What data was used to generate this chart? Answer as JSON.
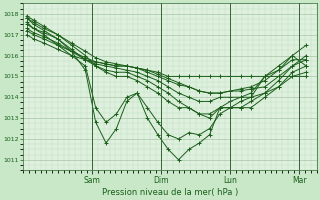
{
  "xlabel": "Pression niveau de la mer( hPa )",
  "ylim": [
    1010.5,
    1018.5
  ],
  "yticks": [
    1011,
    1012,
    1013,
    1014,
    1015,
    1016,
    1017,
    1018
  ],
  "xtick_labels": [
    "Sam",
    "Dim",
    "Lun",
    "Mar"
  ],
  "xtick_positions": [
    1.0,
    2.0,
    3.0,
    4.0
  ],
  "xlim": [
    0.0,
    4.25
  ],
  "bg_color": "#c8e8c8",
  "plot_bg_color": "#dff0df",
  "grid_color_major": "#99bb99",
  "grid_color_minor": "#bbddbb",
  "line_color": "#1a5e1a",
  "marker": "+",
  "marker_size": 2.5,
  "line_width": 0.7,
  "series_x": [
    0.05,
    0.15,
    0.3,
    0.5,
    0.7,
    0.9,
    1.05,
    1.2,
    1.35,
    1.5,
    1.65,
    1.8,
    1.95,
    2.1,
    2.25,
    2.4,
    2.55,
    2.7,
    2.85,
    3.0,
    3.15,
    3.3,
    3.5,
    3.7,
    3.9,
    4.1
  ],
  "series": [
    [
      1017.8,
      1017.5,
      1017.2,
      1016.8,
      1016.2,
      1015.3,
      1012.8,
      1011.8,
      1012.5,
      1013.8,
      1014.2,
      1013.0,
      1012.2,
      1011.5,
      1011.0,
      1011.5,
      1011.8,
      1012.2,
      1013.5,
      1013.8,
      1014.0,
      1014.2,
      1015.0,
      1015.3,
      1015.8,
      1015.8
    ],
    [
      1017.6,
      1017.3,
      1017.0,
      1016.5,
      1016.0,
      1015.5,
      1013.5,
      1012.8,
      1013.2,
      1014.0,
      1014.2,
      1013.5,
      1012.8,
      1012.2,
      1012.0,
      1012.3,
      1012.2,
      1012.5,
      1013.2,
      1013.5,
      1013.8,
      1014.0,
      1015.0,
      1015.5,
      1016.0,
      1015.5
    ],
    [
      1017.9,
      1017.7,
      1017.4,
      1017.0,
      1016.5,
      1016.0,
      1015.5,
      1015.2,
      1015.0,
      1015.0,
      1014.8,
      1014.5,
      1014.2,
      1013.8,
      1013.5,
      1013.5,
      1013.2,
      1013.0,
      1013.5,
      1013.5,
      1013.5,
      1013.8,
      1014.2,
      1014.8,
      1015.5,
      1016.0
    ],
    [
      1017.5,
      1017.3,
      1017.1,
      1016.8,
      1016.3,
      1015.8,
      1015.5,
      1015.3,
      1015.2,
      1015.2,
      1015.0,
      1014.8,
      1014.5,
      1014.2,
      1013.8,
      1013.5,
      1013.2,
      1013.2,
      1013.5,
      1013.5,
      1013.5,
      1013.5,
      1014.0,
      1014.5,
      1015.2,
      1015.5
    ],
    [
      1017.2,
      1017.0,
      1016.8,
      1016.5,
      1016.2,
      1015.8,
      1015.6,
      1015.5,
      1015.4,
      1015.3,
      1015.2,
      1015.0,
      1014.8,
      1014.5,
      1014.2,
      1014.0,
      1013.8,
      1013.8,
      1014.0,
      1014.0,
      1014.0,
      1014.0,
      1014.2,
      1014.5,
      1015.0,
      1015.2
    ],
    [
      1017.0,
      1016.8,
      1016.6,
      1016.3,
      1016.0,
      1015.8,
      1015.7,
      1015.6,
      1015.5,
      1015.5,
      1015.4,
      1015.3,
      1015.2,
      1015.0,
      1015.0,
      1015.0,
      1015.0,
      1015.0,
      1015.0,
      1015.0,
      1015.0,
      1015.0,
      1015.0,
      1015.0,
      1015.0,
      1015.0
    ],
    [
      1017.3,
      1017.1,
      1016.9,
      1016.6,
      1016.2,
      1015.9,
      1015.7,
      1015.6,
      1015.5,
      1015.5,
      1015.4,
      1015.2,
      1015.0,
      1014.8,
      1014.6,
      1014.5,
      1014.3,
      1014.2,
      1014.2,
      1014.3,
      1014.3,
      1014.4,
      1014.5,
      1015.0,
      1015.5,
      1015.8
    ],
    [
      1017.8,
      1017.6,
      1017.3,
      1017.0,
      1016.6,
      1016.2,
      1015.9,
      1015.7,
      1015.6,
      1015.5,
      1015.4,
      1015.3,
      1015.1,
      1014.9,
      1014.7,
      1014.5,
      1014.3,
      1014.2,
      1014.2,
      1014.3,
      1014.4,
      1014.5,
      1014.8,
      1015.3,
      1016.0,
      1016.5
    ]
  ]
}
